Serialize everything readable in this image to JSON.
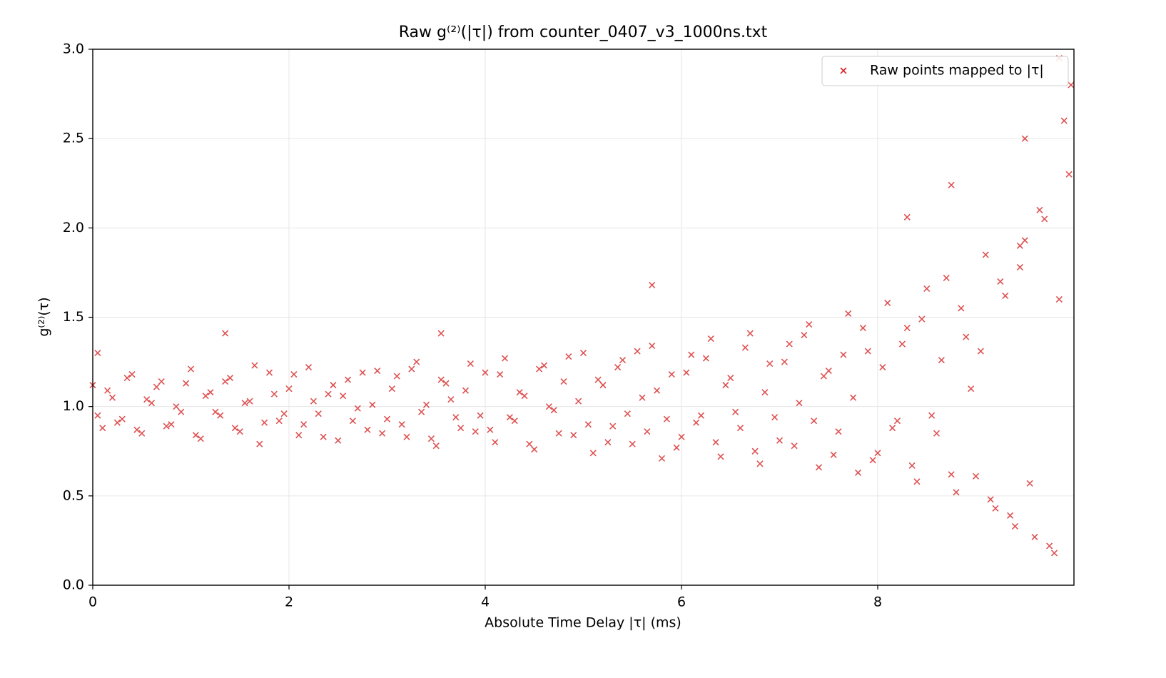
{
  "chart_data": {
    "type": "scatter",
    "title": "Raw g⁽²⁾(|τ|) from counter_0407_v3_1000ns.txt",
    "xlabel": "Absolute Time Delay |τ| (ms)",
    "ylabel": "g⁽²⁾(τ)",
    "xlim": [
      0,
      10
    ],
    "ylim": [
      0,
      3
    ],
    "xticks": [
      0,
      2,
      4,
      6,
      8
    ],
    "yticks": [
      {
        "value": 0,
        "label": "0.0"
      },
      0.5,
      {
        "value": 1,
        "label": "1.0"
      },
      1.5,
      {
        "value": 2,
        "label": "2.0"
      },
      2.5,
      {
        "value": 3,
        "label": "3.0"
      }
    ],
    "grid": true,
    "legend": "upper right",
    "series": [
      {
        "name": "Raw points mapped to |τ|",
        "color": "#d62728",
        "x": [
          0,
          0.1,
          0.2,
          0.3,
          0.4,
          0.5,
          0.6,
          0.7,
          0.8,
          0.9,
          1,
          1.1,
          1.2,
          1.3,
          1.4,
          1.5,
          1.6,
          1.7,
          1.8,
          1.9,
          2,
          2.1,
          2.2,
          2.3,
          2.4,
          2.5,
          2.6,
          2.7,
          2.8,
          2.9,
          3,
          3.1,
          3.2,
          3.3,
          3.4,
          3.5,
          3.6,
          3.7,
          3.8,
          3.9,
          4,
          4.1,
          4.2,
          4.3,
          4.4,
          4.5,
          4.6,
          4.7,
          4.8,
          4.9,
          5,
          5.1,
          5.2,
          5.3,
          5.4,
          5.5,
          5.6,
          5.7,
          5.8,
          5.9,
          6,
          6.1,
          6.2,
          6.3,
          6.4,
          6.5,
          6.6,
          6.7,
          6.8,
          6.9,
          7,
          7.1,
          7.2,
          7.3,
          7.4,
          7.5,
          7.6,
          7.7,
          7.8,
          7.9,
          8,
          8.1,
          8.2,
          8.3,
          8.4,
          8.5,
          8.6,
          8.7,
          8.8,
          8.9,
          9,
          9.1,
          9.2,
          9.3,
          9.4,
          9.5,
          9.6,
          9.7,
          9.8,
          9.9,
          0.05,
          0.15,
          0.25,
          0.35,
          0.45,
          0.55,
          0.65,
          0.75,
          0.85,
          0.95,
          1.05,
          1.15,
          1.25,
          1.35,
          1.45,
          1.55,
          1.65,
          1.75,
          1.85,
          1.95,
          2.05,
          2.15,
          2.25,
          2.35,
          2.45,
          2.55,
          2.65,
          2.75,
          2.85,
          2.95,
          3.05,
          3.15,
          3.25,
          3.35,
          3.45,
          3.55,
          3.65,
          3.75,
          3.85,
          3.95,
          4.05,
          4.15,
          4.25,
          4.35,
          4.45,
          4.55,
          4.65,
          4.75,
          4.85,
          4.95,
          5.05,
          5.15,
          5.25,
          5.35,
          5.45,
          5.55,
          5.65,
          5.75,
          5.85,
          5.95,
          6.05,
          6.15,
          6.25,
          6.35,
          6.45,
          6.55,
          6.65,
          6.75,
          6.85,
          6.95,
          7.05,
          7.15,
          7.25,
          7.35,
          7.45,
          7.55,
          7.65,
          7.75,
          7.85,
          7.95,
          8.05,
          8.15,
          8.25,
          8.35,
          8.45,
          8.55,
          8.65,
          8.75,
          8.85,
          8.95,
          9.05,
          9.15,
          9.25,
          9.35,
          9.45,
          9.55,
          9.65,
          9.75,
          9.85,
          9.95,
          1.35,
          5.7,
          3.55,
          8.3,
          8.75,
          9.5,
          9.85,
          9.97,
          9.45,
          0.05
        ],
        "values": [
          1.12,
          0.88,
          1.05,
          0.93,
          1.18,
          0.85,
          1.02,
          1.14,
          0.9,
          0.97,
          1.21,
          0.82,
          1.08,
          0.95,
          1.16,
          0.86,
          1.03,
          0.79,
          1.19,
          0.92,
          1.1,
          0.84,
          1.22,
          0.96,
          1.07,
          0.81,
          1.15,
          0.99,
          0.87,
          1.2,
          0.93,
          1.17,
          0.83,
          1.25,
          1.01,
          0.78,
          1.13,
          0.94,
          1.09,
          0.86,
          1.19,
          0.8,
          1.27,
          0.92,
          1.06,
          0.76,
          1.23,
          0.98,
          1.14,
          0.84,
          1.3,
          0.74,
          1.12,
          0.89,
          1.26,
          0.79,
          1.05,
          1.34,
          0.71,
          1.18,
          0.83,
          1.29,
          0.95,
          1.38,
          0.72,
          1.16,
          0.88,
          1.41,
          0.68,
          1.24,
          0.81,
          1.35,
          1.02,
          1.46,
          0.66,
          1.2,
          0.86,
          1.52,
          0.63,
          1.31,
          0.74,
          1.58,
          0.92,
          1.44,
          0.58,
          1.66,
          0.85,
          1.72,
          0.52,
          1.39,
          0.61,
          1.85,
          0.43,
          1.62,
          0.33,
          1.93,
          0.27,
          2.05,
          0.18,
          2.6,
          0.95,
          1.09,
          0.91,
          1.16,
          0.87,
          1.04,
          1.11,
          0.89,
          1.0,
          1.13,
          0.84,
          1.06,
          0.97,
          1.14,
          0.88,
          1.02,
          1.23,
          0.91,
          1.07,
          0.96,
          1.18,
          0.9,
          1.03,
          0.83,
          1.12,
          1.06,
          0.92,
          1.19,
          1.01,
          0.85,
          1.1,
          0.9,
          1.21,
          0.97,
          0.82,
          1.15,
          1.04,
          0.88,
          1.24,
          0.95,
          0.87,
          1.18,
          0.94,
          1.08,
          0.79,
          1.21,
          1.0,
          0.85,
          1.28,
          1.03,
          0.9,
          1.15,
          0.8,
          1.22,
          0.96,
          1.31,
          0.86,
          1.09,
          0.93,
          0.77,
          1.19,
          0.91,
          1.27,
          0.8,
          1.12,
          0.97,
          1.33,
          0.75,
          1.08,
          0.94,
          1.25,
          0.78,
          1.4,
          0.92,
          1.17,
          0.73,
          1.29,
          1.05,
          1.44,
          0.7,
          1.22,
          0.88,
          1.35,
          0.67,
          1.49,
          0.95,
          1.26,
          0.62,
          1.55,
          1.1,
          1.31,
          0.48,
          1.7,
          0.39,
          1.78,
          0.57,
          2.1,
          0.22,
          1.6,
          2.3,
          1.41,
          1.68,
          1.41,
          2.06,
          2.24,
          2.5,
          2.95,
          2.8,
          1.9,
          1.3
        ]
      }
    ]
  }
}
